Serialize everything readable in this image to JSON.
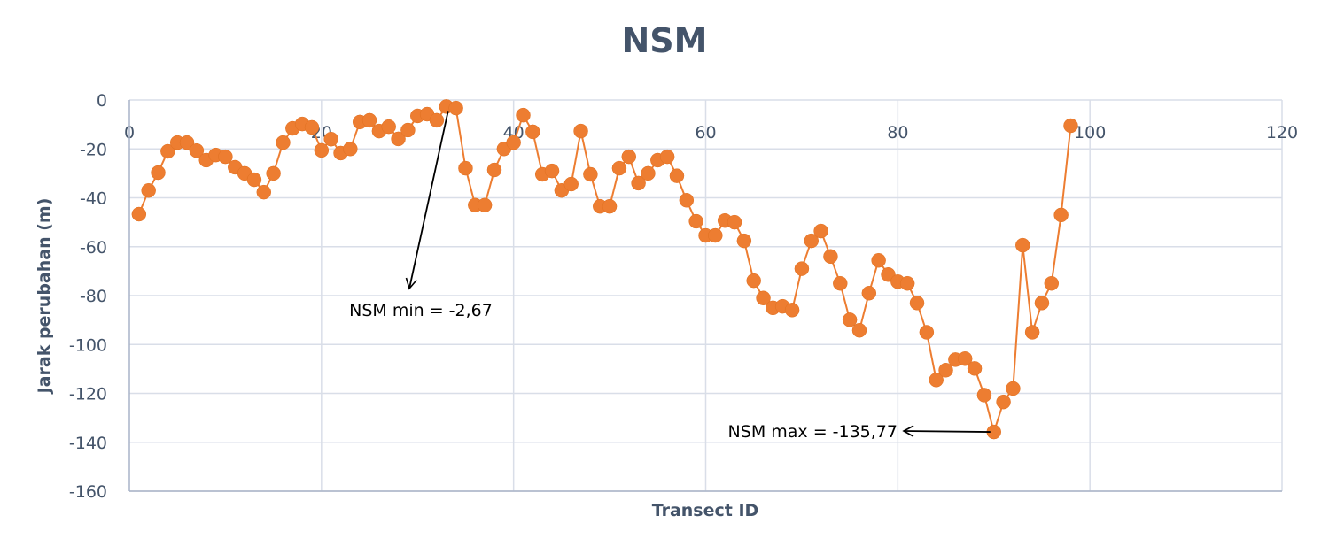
{
  "colors": {
    "series": "#ed7d31",
    "grid": "#d9dee8",
    "axis_text": "#44546a",
    "annotation": "#000000"
  },
  "chart_data": {
    "type": "line",
    "title": "NSM",
    "xlabel": "Transect ID",
    "ylabel": "Jarak perubahan (m)",
    "xlim": [
      0,
      120
    ],
    "ylim": [
      -160,
      0
    ],
    "x_ticks": [
      0,
      20,
      40,
      60,
      80,
      100,
      120
    ],
    "y_ticks": [
      0,
      -20,
      -40,
      -60,
      -80,
      -100,
      -120,
      -140,
      -160
    ],
    "grid": true,
    "legend": null,
    "series": [
      {
        "name": "NSM",
        "marker": "circle",
        "x": [
          1,
          2,
          3,
          4,
          5,
          6,
          7,
          8,
          9,
          10,
          11,
          12,
          13,
          14,
          15,
          16,
          17,
          18,
          19,
          20,
          21,
          22,
          23,
          24,
          25,
          26,
          27,
          28,
          29,
          30,
          31,
          32,
          33,
          34,
          35,
          36,
          37,
          38,
          39,
          40,
          41,
          42,
          43,
          44,
          45,
          46,
          47,
          48,
          49,
          50,
          51,
          52,
          53,
          54,
          55,
          56,
          57,
          58,
          59,
          60,
          61,
          62,
          63,
          64,
          65,
          66,
          67,
          68,
          69,
          70,
          71,
          72,
          73,
          74,
          75,
          76,
          77,
          78,
          79,
          80,
          81,
          82,
          83,
          84,
          85,
          86,
          87,
          88,
          89,
          90,
          91,
          92,
          93,
          94,
          95,
          96,
          97,
          98
        ],
        "values": [
          -46.7,
          -37,
          -29.7,
          -21,
          -17.4,
          -17.4,
          -20.7,
          -24.6,
          -22.5,
          -23.2,
          -27.5,
          -30,
          -32.6,
          -37.7,
          -30,
          -17.4,
          -11.6,
          -9.8,
          -11.2,
          -20.6,
          -16,
          -21.7,
          -20,
          -9,
          -8.3,
          -12.7,
          -10.9,
          -15.9,
          -12.3,
          -6.5,
          -5.8,
          -8.3,
          -2.67,
          -3.3,
          -27.9,
          -43,
          -43,
          -28.6,
          -20,
          -17.4,
          -6.2,
          -13,
          -30.4,
          -29,
          -37,
          -34.4,
          -12.7,
          -30.4,
          -43.5,
          -43.5,
          -27.9,
          -23.2,
          -34,
          -30,
          -24.6,
          -23.2,
          -31,
          -41,
          -49.6,
          -55.4,
          -55.4,
          -49.3,
          -50,
          -57.6,
          -73.9,
          -81,
          -85,
          -84.4,
          -85.9,
          -69,
          -57.6,
          -53.6,
          -64,
          -75,
          -89.9,
          -94.2,
          -79,
          -65.6,
          -71.4,
          -74.3,
          -75,
          -83,
          -95,
          -114.5,
          -110.5,
          -106.2,
          -105.8,
          -109.8,
          -120.7,
          -135.77,
          -123.5,
          -118,
          -59.4,
          -95,
          -83,
          -75,
          -47,
          -10.5
        ]
      }
    ],
    "annotations": [
      {
        "text": "NSM min = -2,67",
        "point_x": 33,
        "point_y": -2.67
      },
      {
        "text": "NSM max = -135,77",
        "point_x": 90,
        "point_y": -135.77
      }
    ]
  }
}
